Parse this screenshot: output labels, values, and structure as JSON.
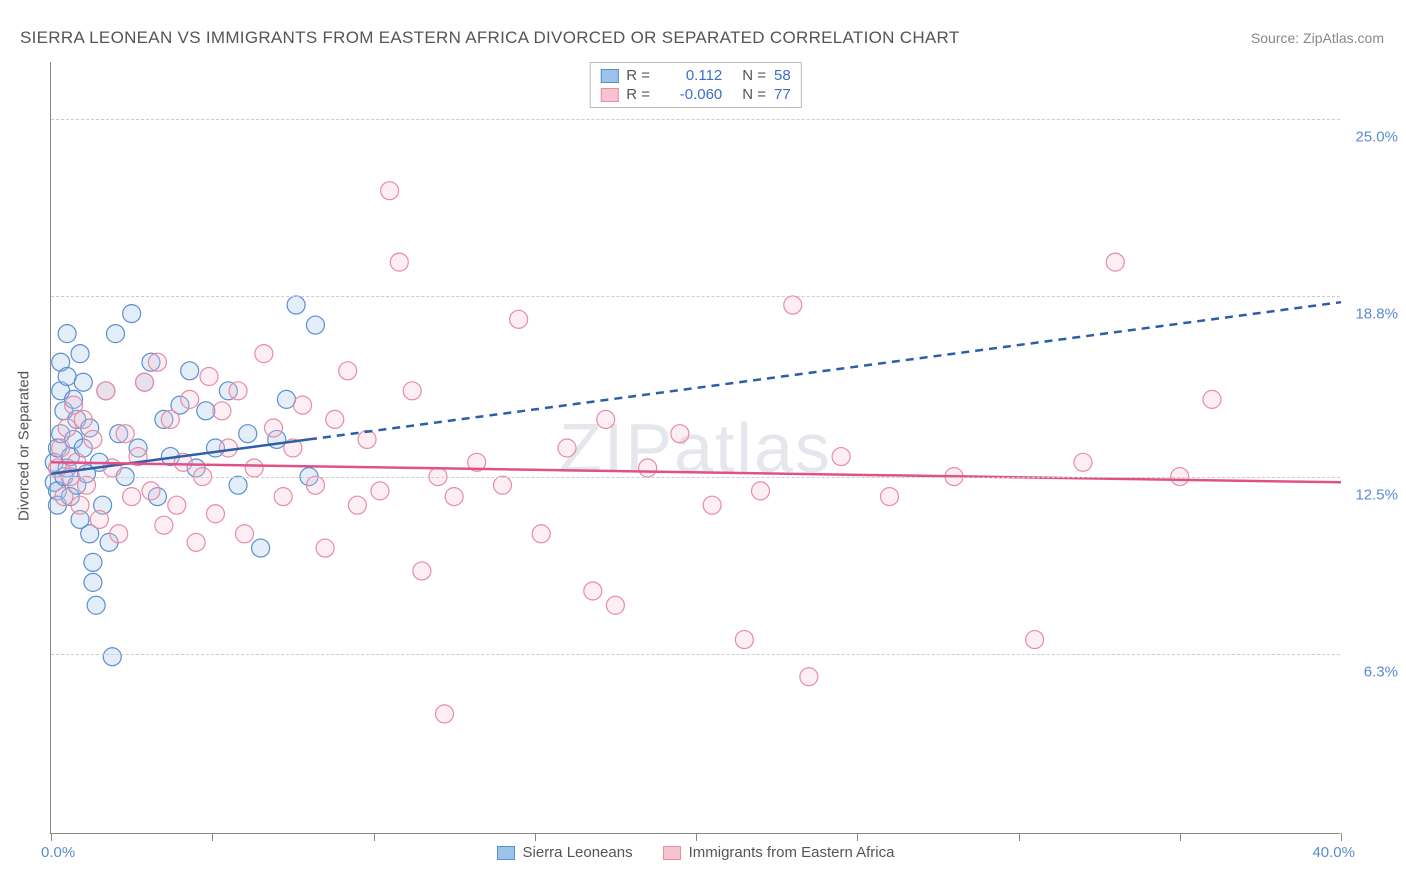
{
  "title": "SIERRA LEONEAN VS IMMIGRANTS FROM EASTERN AFRICA DIVORCED OR SEPARATED CORRELATION CHART",
  "source": "Source: ZipAtlas.com",
  "watermark": "ZIPatlas",
  "y_axis_label": "Divorced or Separated",
  "chart": {
    "type": "scatter-with-trendlines",
    "background_color": "#ffffff",
    "grid_color": "#cccccc",
    "axis_color": "#888888",
    "text_color": "#555555",
    "value_color": "#3b6fc9",
    "tick_label_color": "#5b8bd4",
    "marker_radius": 9,
    "marker_stroke_width": 1.2,
    "marker_fill_opacity": 0.28,
    "xlim": [
      0,
      40
    ],
    "ylim": [
      0,
      27
    ],
    "x_ticks": [
      0,
      5,
      10,
      15,
      20,
      25,
      30,
      35,
      40
    ],
    "x_min_label": "0.0%",
    "x_max_label": "40.0%",
    "y_gridlines": [
      {
        "value": 6.3,
        "label": "6.3%"
      },
      {
        "value": 12.5,
        "label": "12.5%"
      },
      {
        "value": 18.8,
        "label": "18.8%"
      },
      {
        "value": 25.0,
        "label": "25.0%"
      }
    ],
    "series": [
      {
        "name": "Sierra Leoneans",
        "id": "sierra",
        "fill": "#9ec3ea",
        "stroke": "#5a8fd0",
        "line_color": "#2d5fa8",
        "R": "0.112",
        "N": "58",
        "trend_solid": {
          "x1": 0,
          "y1": 12.6,
          "x2": 8,
          "y2": 13.8
        },
        "trend_dashed": {
          "x1": 8,
          "y1": 13.8,
          "x2": 40,
          "y2": 18.6
        },
        "points": [
          [
            0.1,
            13.0
          ],
          [
            0.1,
            12.3
          ],
          [
            0.2,
            13.5
          ],
          [
            0.2,
            12.0
          ],
          [
            0.2,
            11.5
          ],
          [
            0.3,
            14.0
          ],
          [
            0.3,
            15.5
          ],
          [
            0.3,
            16.5
          ],
          [
            0.4,
            12.5
          ],
          [
            0.4,
            14.8
          ],
          [
            0.5,
            12.8
          ],
          [
            0.5,
            16.0
          ],
          [
            0.5,
            17.5
          ],
          [
            0.6,
            13.2
          ],
          [
            0.6,
            11.8
          ],
          [
            0.7,
            15.2
          ],
          [
            0.7,
            13.8
          ],
          [
            0.8,
            14.5
          ],
          [
            0.8,
            12.2
          ],
          [
            0.9,
            16.8
          ],
          [
            0.9,
            11.0
          ],
          [
            1.0,
            13.5
          ],
          [
            1.0,
            15.8
          ],
          [
            1.1,
            12.6
          ],
          [
            1.2,
            14.2
          ],
          [
            1.2,
            10.5
          ],
          [
            1.3,
            9.5
          ],
          [
            1.3,
            8.8
          ],
          [
            1.4,
            8.0
          ],
          [
            1.5,
            13.0
          ],
          [
            1.6,
            11.5
          ],
          [
            1.7,
            15.5
          ],
          [
            1.8,
            10.2
          ],
          [
            1.9,
            6.2
          ],
          [
            2.0,
            17.5
          ],
          [
            2.1,
            14.0
          ],
          [
            2.3,
            12.5
          ],
          [
            2.5,
            18.2
          ],
          [
            2.7,
            13.5
          ],
          [
            2.9,
            15.8
          ],
          [
            3.1,
            16.5
          ],
          [
            3.3,
            11.8
          ],
          [
            3.5,
            14.5
          ],
          [
            3.7,
            13.2
          ],
          [
            4.0,
            15.0
          ],
          [
            4.3,
            16.2
          ],
          [
            4.5,
            12.8
          ],
          [
            4.8,
            14.8
          ],
          [
            5.1,
            13.5
          ],
          [
            5.5,
            15.5
          ],
          [
            5.8,
            12.2
          ],
          [
            6.1,
            14.0
          ],
          [
            6.5,
            10.0
          ],
          [
            7.0,
            13.8
          ],
          [
            7.3,
            15.2
          ],
          [
            7.6,
            18.5
          ],
          [
            8.0,
            12.5
          ],
          [
            8.2,
            17.8
          ]
        ]
      },
      {
        "name": "Immigrants from Eastern Africa",
        "id": "eastern",
        "fill": "#f6c3d0",
        "stroke": "#e88ba6",
        "line_color": "#e0518a",
        "R": "-0.060",
        "N": "77",
        "trend_solid": {
          "x1": 0,
          "y1": 13.0,
          "x2": 40,
          "y2": 12.3
        },
        "trend_dashed": null,
        "points": [
          [
            0.2,
            12.8
          ],
          [
            0.3,
            13.5
          ],
          [
            0.4,
            11.8
          ],
          [
            0.5,
            14.2
          ],
          [
            0.6,
            12.5
          ],
          [
            0.7,
            15.0
          ],
          [
            0.8,
            13.0
          ],
          [
            0.9,
            11.5
          ],
          [
            1.0,
            14.5
          ],
          [
            1.1,
            12.2
          ],
          [
            1.3,
            13.8
          ],
          [
            1.5,
            11.0
          ],
          [
            1.7,
            15.5
          ],
          [
            1.9,
            12.8
          ],
          [
            2.1,
            10.5
          ],
          [
            2.3,
            14.0
          ],
          [
            2.5,
            11.8
          ],
          [
            2.7,
            13.2
          ],
          [
            2.9,
            15.8
          ],
          [
            3.1,
            12.0
          ],
          [
            3.3,
            16.5
          ],
          [
            3.5,
            10.8
          ],
          [
            3.7,
            14.5
          ],
          [
            3.9,
            11.5
          ],
          [
            4.1,
            13.0
          ],
          [
            4.3,
            15.2
          ],
          [
            4.5,
            10.2
          ],
          [
            4.7,
            12.5
          ],
          [
            4.9,
            16.0
          ],
          [
            5.1,
            11.2
          ],
          [
            5.3,
            14.8
          ],
          [
            5.5,
            13.5
          ],
          [
            5.8,
            15.5
          ],
          [
            6.0,
            10.5
          ],
          [
            6.3,
            12.8
          ],
          [
            6.6,
            16.8
          ],
          [
            6.9,
            14.2
          ],
          [
            7.2,
            11.8
          ],
          [
            7.5,
            13.5
          ],
          [
            7.8,
            15.0
          ],
          [
            8.2,
            12.2
          ],
          [
            8.5,
            10.0
          ],
          [
            8.8,
            14.5
          ],
          [
            9.2,
            16.2
          ],
          [
            9.5,
            11.5
          ],
          [
            9.8,
            13.8
          ],
          [
            10.2,
            12.0
          ],
          [
            10.5,
            22.5
          ],
          [
            10.8,
            20.0
          ],
          [
            11.2,
            15.5
          ],
          [
            11.5,
            9.2
          ],
          [
            12.0,
            12.5
          ],
          [
            12.2,
            4.2
          ],
          [
            12.5,
            11.8
          ],
          [
            13.2,
            13.0
          ],
          [
            14.0,
            12.2
          ],
          [
            14.5,
            18.0
          ],
          [
            15.2,
            10.5
          ],
          [
            16.0,
            13.5
          ],
          [
            16.8,
            8.5
          ],
          [
            17.2,
            14.5
          ],
          [
            17.5,
            8.0
          ],
          [
            18.5,
            12.8
          ],
          [
            19.5,
            14.0
          ],
          [
            20.5,
            11.5
          ],
          [
            21.5,
            6.8
          ],
          [
            22.0,
            12.0
          ],
          [
            23.0,
            18.5
          ],
          [
            23.5,
            5.5
          ],
          [
            24.5,
            13.2
          ],
          [
            26.0,
            11.8
          ],
          [
            28.0,
            12.5
          ],
          [
            30.5,
            6.8
          ],
          [
            32.0,
            13.0
          ],
          [
            33.0,
            20.0
          ],
          [
            35.0,
            12.5
          ],
          [
            36.0,
            15.2
          ]
        ]
      }
    ]
  },
  "legend_top_labels": {
    "R": "R =",
    "N": "N ="
  },
  "legend_bottom": [
    {
      "name": "Sierra Leoneans",
      "fill": "#9ec3ea",
      "stroke": "#5a8fd0"
    },
    {
      "name": "Immigrants from Eastern Africa",
      "fill": "#f6c3d0",
      "stroke": "#e88ba6"
    }
  ]
}
